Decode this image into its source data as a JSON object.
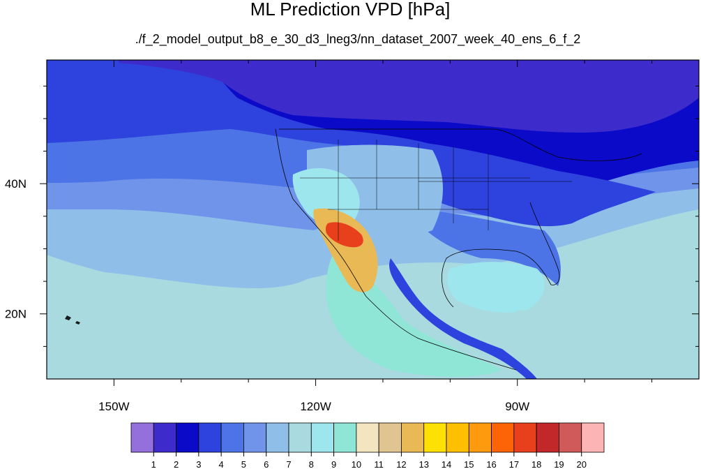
{
  "chart_data": {
    "type": "heatmap",
    "title": "ML Prediction VPD [hPa]",
    "subtitle": "./f_2_model_output_b8_e_30_d3_lneg3/nn_dataset_2007_week_40_ens_6_f_2",
    "projection": "cylindrical equidistant",
    "lon_range": [
      -160,
      -63
    ],
    "lat_range": [
      10,
      59
    ],
    "x_ticks": [
      {
        "value": -150,
        "label": "150W"
      },
      {
        "value": -120,
        "label": "120W"
      },
      {
        "value": -90,
        "label": "90W"
      }
    ],
    "y_ticks": [
      {
        "value": 20,
        "label": "20N"
      },
      {
        "value": 40,
        "label": "40N"
      }
    ],
    "colorbar": {
      "levels": [
        1,
        2,
        3,
        4,
        5,
        6,
        7,
        8,
        9,
        10,
        11,
        12,
        13,
        14,
        15,
        16,
        17,
        18,
        19,
        20
      ],
      "colors": [
        "#9370db",
        "#3e2bcc",
        "#0a0ac8",
        "#2e43dd",
        "#4d74e6",
        "#6f94ea",
        "#8fbfe8",
        "#a9dae0",
        "#9ee6ee",
        "#8fe6d6",
        "#f3e5c0",
        "#e0c592",
        "#e9b956",
        "#fde004",
        "#fdbf00",
        "#fd9a0e",
        "#fd6408",
        "#e83f1c",
        "#c22729",
        "#d0595a",
        "#fcb4b4"
      ]
    },
    "regions": {
      "ocean_north": 3,
      "ocean_mid_north": 4,
      "ocean_mid": 5,
      "ocean_mid_south": 6,
      "ocean_south": 7,
      "arctic_land": 1,
      "canada_south": 2,
      "us_east": 3,
      "us_southeast": 4,
      "gulf_of_mexico": 8,
      "caribbean": 7,
      "us_west_interior": 6,
      "great_basin": 8,
      "eastern_pacific_plume": 9,
      "baja_mexico_northwest": 12,
      "southwest_desert_core": 17
    }
  }
}
